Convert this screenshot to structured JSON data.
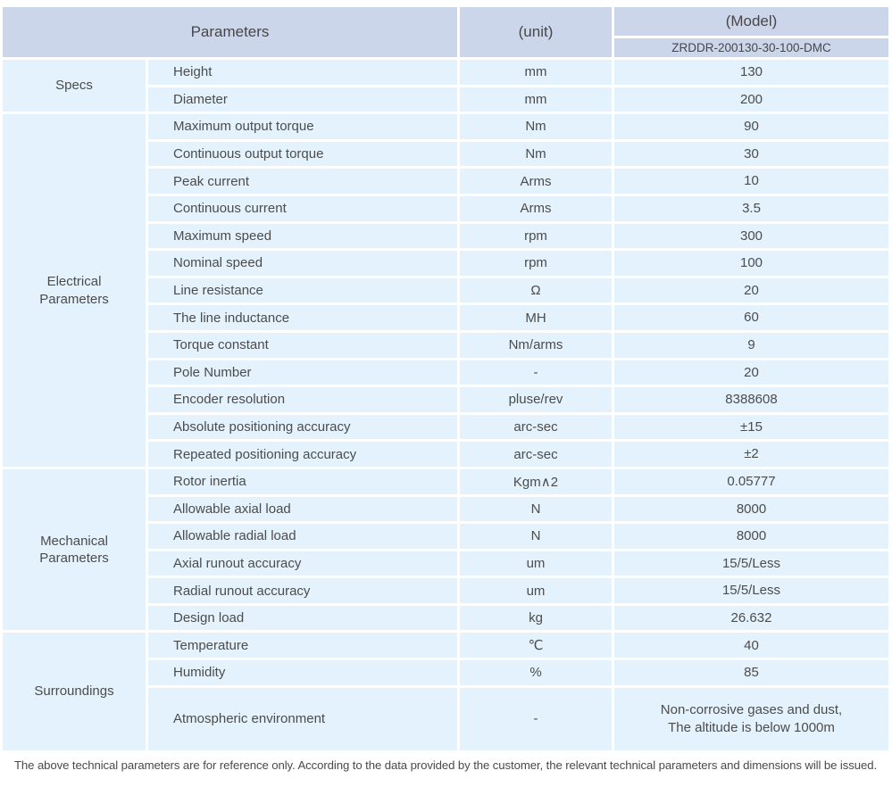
{
  "colors": {
    "header_bg": "#ccd6eb",
    "row_bg": "#e3f2fc",
    "text": "#4a4a4a",
    "white": "#ffffff"
  },
  "table": {
    "header": {
      "parameters_label": "Parameters",
      "unit_label": "(unit)",
      "model_label": "(Model)",
      "model_code": "ZRDDR-200130-30-100-DMC"
    },
    "sections": [
      {
        "category": "Specs",
        "rows": [
          {
            "name": "Height",
            "unit": "mm",
            "value": "130"
          },
          {
            "name": "Diameter",
            "unit": "mm",
            "value": "200"
          }
        ]
      },
      {
        "category": "Electrical Parameters",
        "rows": [
          {
            "name": "Maximum output torque",
            "unit": "Nm",
            "value": "90"
          },
          {
            "name": "Continuous output torque",
            "unit": "Nm",
            "value": "30"
          },
          {
            "name": "Peak current",
            "unit": "Arms",
            "value": "10"
          },
          {
            "name": "Continuous current",
            "unit": "Arms",
            "value": "3.5"
          },
          {
            "name": "Maximum speed",
            "unit": "rpm",
            "value": "300"
          },
          {
            "name": "Nominal speed",
            "unit": "rpm",
            "value": "100"
          },
          {
            "name": "Line resistance",
            "unit": "Ω",
            "value": "20"
          },
          {
            "name": "The line inductance",
            "unit": "MH",
            "value": "60"
          },
          {
            "name": "Torque constant",
            "unit": "Nm/arms",
            "value": "9"
          },
          {
            "name": "Pole Number",
            "unit": "-",
            "value": "20"
          },
          {
            "name": "Encoder resolution",
            "unit": "pluse/rev",
            "value": "8388608"
          },
          {
            "name": "Absolute positioning accuracy",
            "unit": "arc-sec",
            "value": "±15"
          },
          {
            "name": "Repeated positioning accuracy",
            "unit": "arc-sec",
            "value": "±2"
          }
        ]
      },
      {
        "category": "Mechanical Parameters",
        "rows": [
          {
            "name": "Rotor inertia",
            "unit": "Kgm∧2",
            "value": "0.05777"
          },
          {
            "name": "Allowable axial load",
            "unit": "N",
            "value": "8000"
          },
          {
            "name": "Allowable radial load",
            "unit": "N",
            "value": "8000"
          },
          {
            "name": "Axial runout accuracy",
            "unit": "um",
            "value": "15/5/Less"
          },
          {
            "name": "Radial runout accuracy",
            "unit": "um",
            "value": "15/5/Less"
          },
          {
            "name": "Design load",
            "unit": "kg",
            "value": "26.632"
          }
        ]
      },
      {
        "category": "Surroundings",
        "rows": [
          {
            "name": "Temperature",
            "unit": "℃",
            "value": "40"
          },
          {
            "name": "Humidity",
            "unit": "%",
            "value": "85"
          },
          {
            "name": "Atmospheric environment",
            "unit": "-",
            "value": "Non-corrosive gases and dust,\nThe altitude is below 1000m",
            "tall": true
          }
        ]
      }
    ],
    "footer_note": "The above technical parameters are for reference only. According to the data provided by the customer, the relevant technical parameters and dimensions will be issued."
  }
}
